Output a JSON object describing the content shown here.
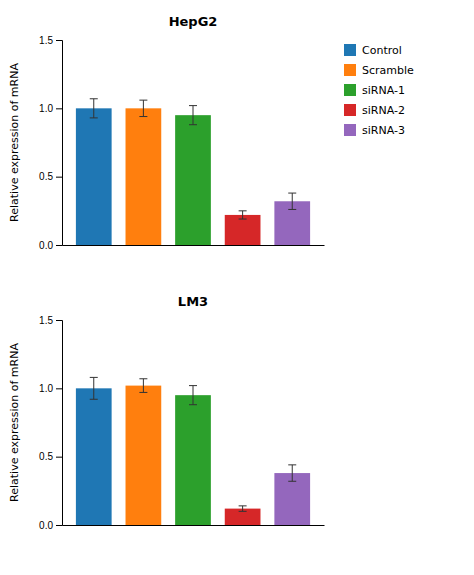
{
  "chart_data": [
    {
      "type": "bar",
      "title": "HepG2",
      "y_label": "Relative expression of mRNA",
      "categories": [
        "Control",
        "Scramble",
        "siRNA-1",
        "siRNA-2",
        "siRNA-3"
      ],
      "values": [
        1.0,
        1.0,
        0.95,
        0.22,
        0.32
      ],
      "errors": [
        0.07,
        0.06,
        0.07,
        0.03,
        0.06
      ],
      "ylim": [
        0.0,
        1.5
      ],
      "yticks": [
        {
          "value": 0.0,
          "label": "0.0"
        },
        0.5,
        {
          "value": 1.0,
          "label": "1.0"
        },
        1.5
      ],
      "tick_labels": "y",
      "grid": false,
      "legend": "right"
    },
    {
      "type": "bar",
      "title": "LM3",
      "y_label": "Relative expression of mRNA",
      "categories": [
        "Control",
        "Scramble",
        "siRNA-1",
        "siRNA-2",
        "siRNA-3"
      ],
      "values": [
        1.0,
        1.02,
        0.95,
        0.12,
        0.38
      ],
      "errors": [
        0.08,
        0.05,
        0.07,
        0.02,
        0.06
      ],
      "ylim": [
        0.0,
        1.5
      ],
      "yticks": [
        {
          "value": 0.0,
          "label": "0.0"
        },
        0.5,
        {
          "value": 1.0,
          "label": "1.0"
        },
        1.5
      ],
      "tick_labels": "y",
      "grid": false
    }
  ]
}
